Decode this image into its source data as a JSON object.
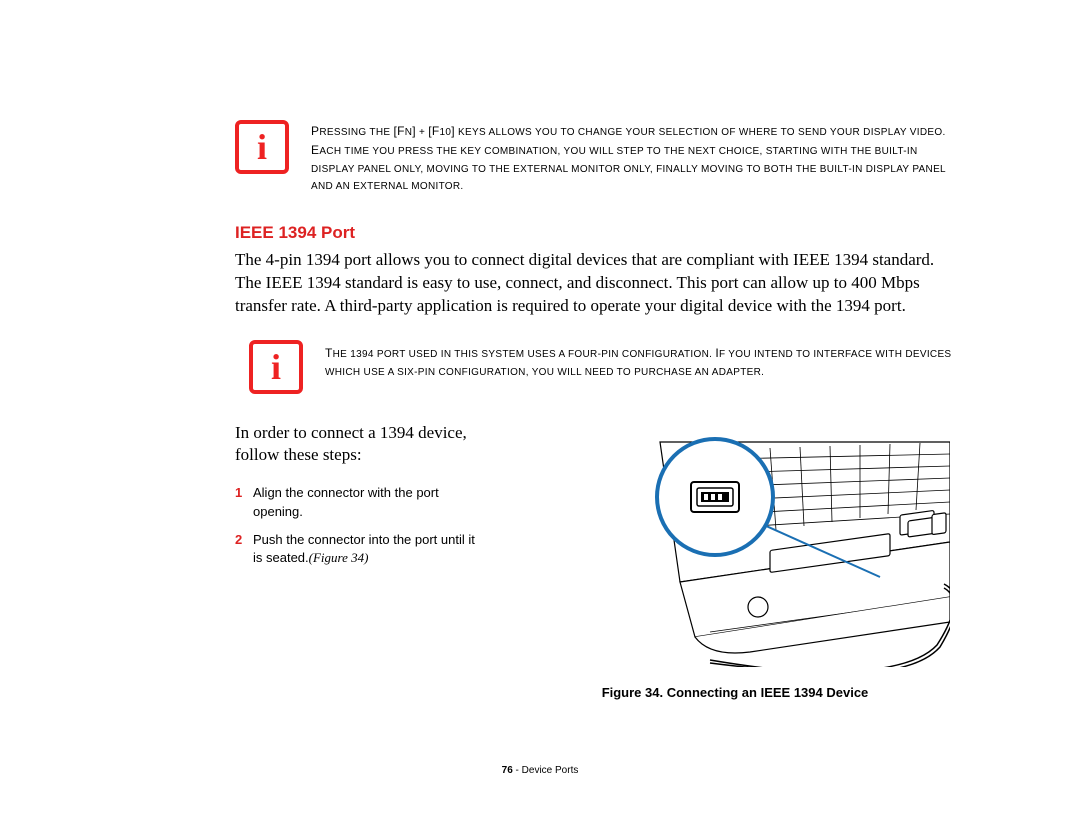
{
  "notes": {
    "note1": "Pressing the [Fn] + [F10] keys allows you to change your selection of where to send your display video. Each time you press the key combination, you will step to the next choice, starting with the built-in display panel only, moving to the external monitor only, finally moving to both the built-in display panel and an external monitor.",
    "note2": "The 1394 port used in this system uses a four-pin configuration. If you intend to interface with devices which use a six-pin configuration, you will need to purchase an adapter."
  },
  "section": {
    "heading": "IEEE 1394 Port",
    "body": "The 4-pin 1394 port allows you to connect digital devices that are compliant with IEEE 1394 standard. The IEEE 1394 standard is easy to use, connect, and disconnect. This port can allow up to 400 Mbps transfer rate. A third-party application is required to operate your digital device with the 1394 port.",
    "intro": "In order to connect a 1394 device, follow these steps:",
    "steps": [
      {
        "num": "1",
        "text": "Align the connector with the port opening."
      },
      {
        "num": "2",
        "text": "Push the connector into the port until it is seated.",
        "figref": "(Figure 34)"
      }
    ]
  },
  "figure": {
    "caption": "Figure 34.  Connecting an IEEE 1394 Device"
  },
  "footer": {
    "page": "76",
    "section": "Device Ports"
  },
  "colors": {
    "accent": "#d22",
    "icon_border": "#e22",
    "callout": "#1a6fb3"
  }
}
